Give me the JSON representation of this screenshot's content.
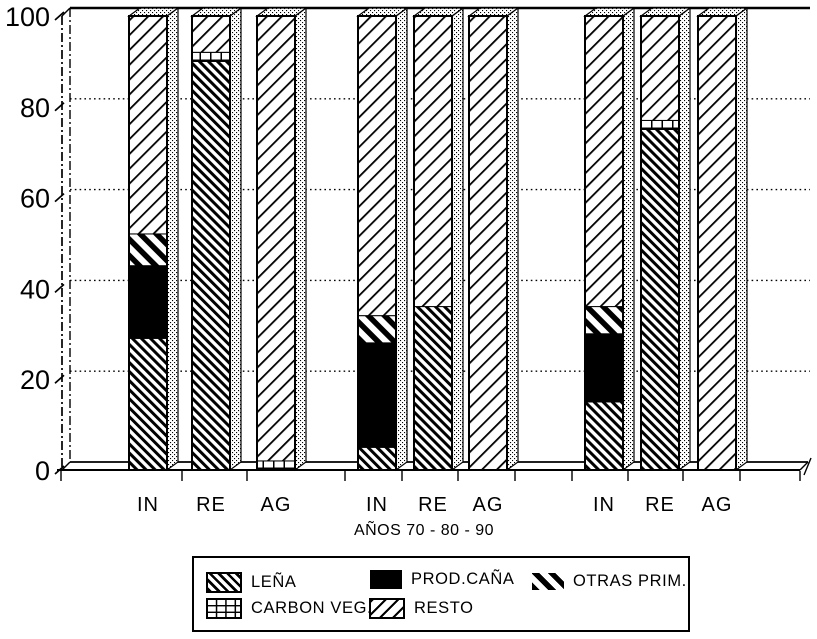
{
  "figure": {
    "background": "#ffffff",
    "ink": "#000000"
  },
  "chart_data": {
    "type": "bar",
    "stacked": true,
    "style": "3d-monochrome-hatch-patterns",
    "title": "",
    "xlabel": "AÑOS 70 - 80 - 90",
    "ylabel": "",
    "ylim": [
      0,
      100
    ],
    "yticks": [
      0,
      20,
      40,
      60,
      80,
      100
    ],
    "grid": "dotted-horizontal",
    "legend_position": "bottom-box",
    "groups": [
      "AÑOS 70",
      "AÑOS 80",
      "AÑOS 90"
    ],
    "categories": [
      "IN",
      "RE",
      "AG",
      "IN",
      "RE",
      "AG",
      "IN",
      "RE",
      "AG"
    ],
    "series": [
      {
        "name": "LEÑA",
        "pattern": "dense-backslash-hatch",
        "values": [
          29,
          90,
          0,
          5,
          36,
          0,
          15,
          75,
          0
        ]
      },
      {
        "name": "PROD.CAÑA",
        "pattern": "solid-black",
        "values": [
          16,
          0,
          0,
          23,
          0,
          0,
          15,
          0,
          0
        ]
      },
      {
        "name": "OTRAS PRIM.",
        "pattern": "bold-backslash-stripes",
        "values": [
          7,
          0,
          0,
          6,
          0,
          0,
          6,
          0,
          0
        ]
      },
      {
        "name": "CARBON VEG.",
        "pattern": "grid-crosshatch",
        "values": [
          0,
          2,
          2,
          0,
          0,
          0,
          0,
          2,
          0
        ]
      },
      {
        "name": "RESTO",
        "pattern": "light-slash-hatch",
        "values": [
          48,
          8,
          98,
          66,
          64,
          100,
          64,
          23,
          100
        ]
      }
    ]
  }
}
